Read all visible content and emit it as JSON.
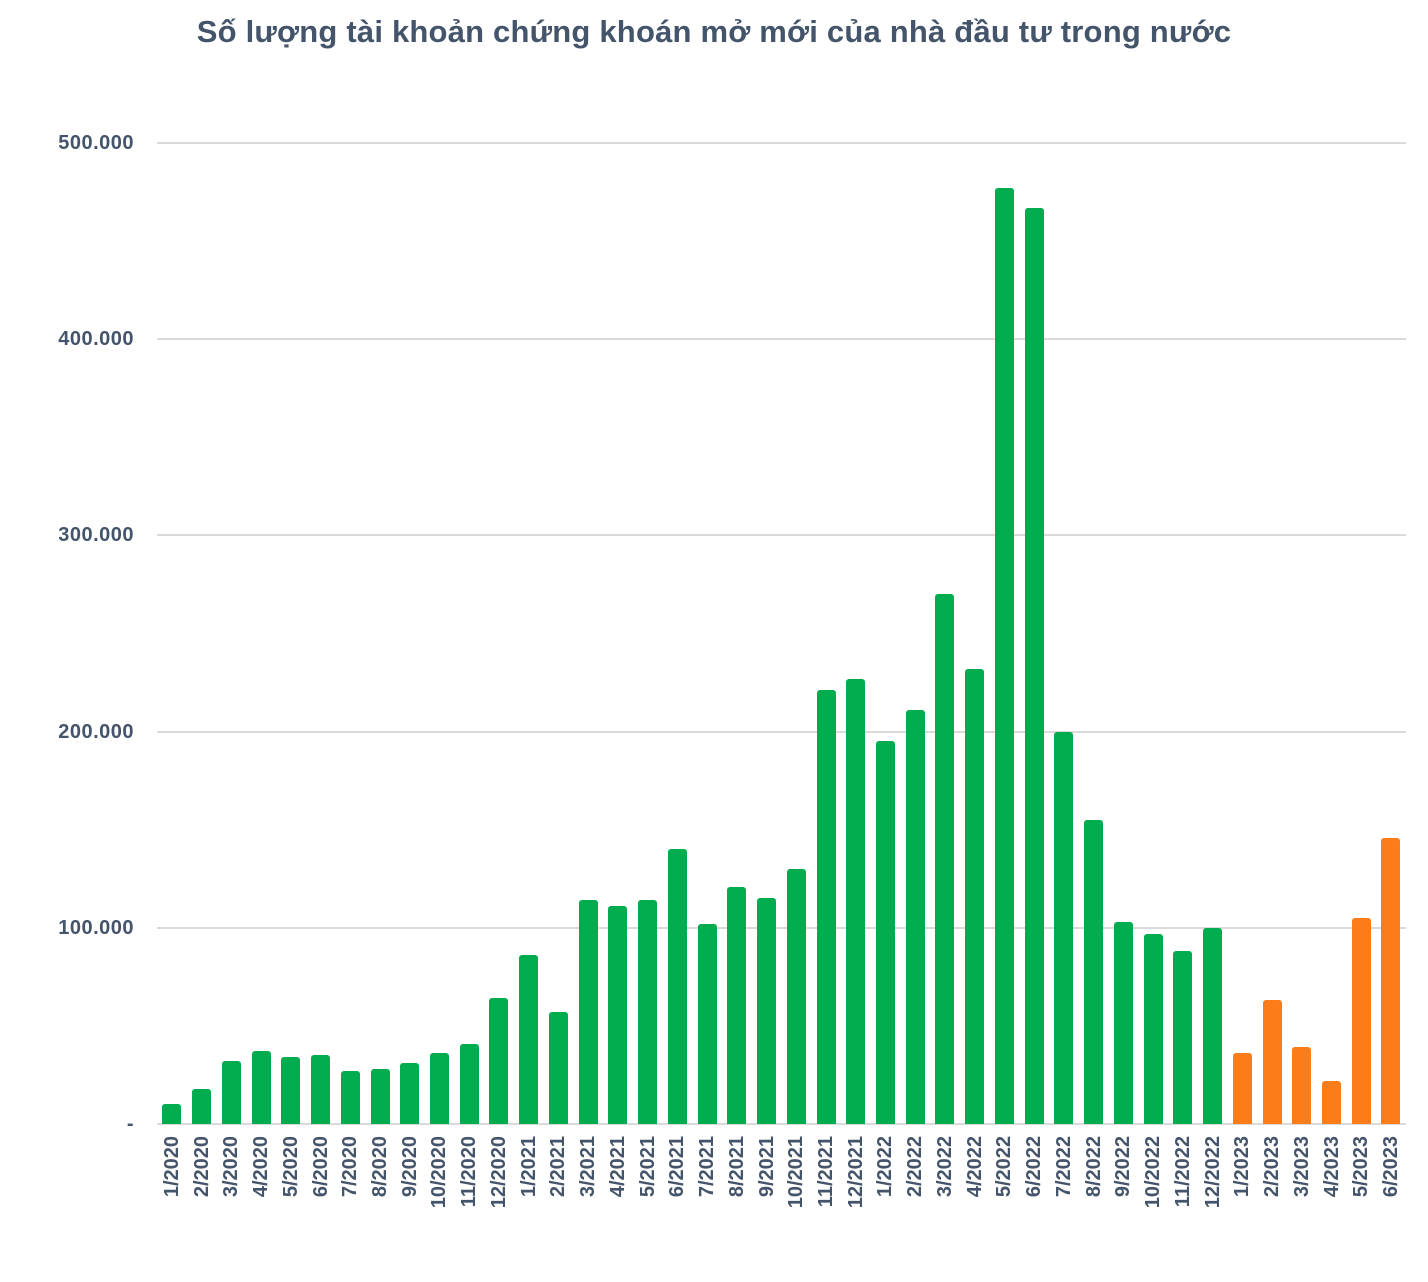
{
  "page": {
    "background": "#FFFFFF"
  },
  "chart_data": {
    "type": "bar",
    "title": "Số lượng tài khoản chứng khoán mở mới của nhà đầu tư trong nước",
    "xlabel": "",
    "ylabel": "",
    "legend": "none",
    "grid": true,
    "categories": [
      "1/2020",
      "2/2020",
      "3/2020",
      "4/2020",
      "5/2020",
      "6/2020",
      "7/2020",
      "8/2020",
      "9/2020",
      "10/2020",
      "11/2020",
      "12/2020",
      "1/2021",
      "2/2021",
      "3/2021",
      "4/2021",
      "5/2021",
      "6/2021",
      "7/2021",
      "8/2021",
      "9/2021",
      "10/2021",
      "11/2021",
      "12/2021",
      "1/2022",
      "2/2022",
      "3/2022",
      "4/2022",
      "5/2022",
      "6/2022",
      "7/2022",
      "8/2022",
      "9/2022",
      "10/2022",
      "11/2022",
      "12/2022",
      "1/2023",
      "2/2023",
      "3/2023",
      "4/2023",
      "5/2023",
      "6/2023"
    ],
    "values": [
      10000,
      18000,
      32000,
      37000,
      34000,
      35000,
      27000,
      28000,
      31000,
      36000,
      41000,
      64000,
      86000,
      57000,
      114000,
      111000,
      114000,
      140000,
      102000,
      121000,
      115000,
      130000,
      221000,
      227000,
      195000,
      211000,
      270000,
      232000,
      477000,
      467000,
      200000,
      155000,
      103000,
      97000,
      88000,
      100000,
      36000,
      63000,
      39000,
      22000,
      105000,
      146000
    ],
    "y_axis": {
      "ylim": [
        0,
        500000
      ],
      "tick_values": [
        500000,
        400000,
        300000,
        200000,
        100000,
        0
      ],
      "tick_labels": [
        "500.000",
        "400.000",
        "300.000",
        "200.000",
        "100.000",
        "-"
      ]
    },
    "bar_colors": {
      "default": "#00AC4D",
      "highlight_2023": "#FA7D19",
      "highlight_start_index": 36
    },
    "text_color": "#44546A",
    "gridline_color": "#DADADA"
  }
}
